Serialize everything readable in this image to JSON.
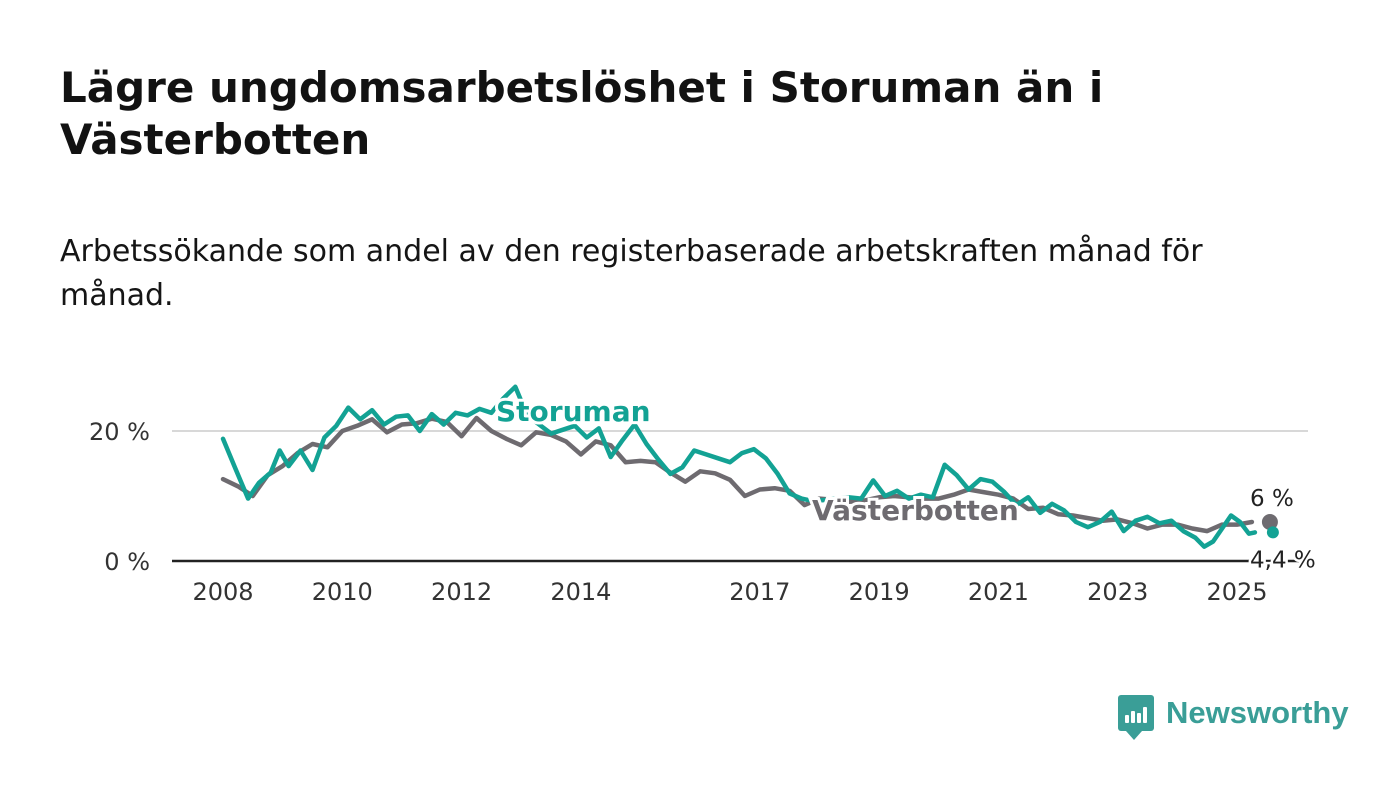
{
  "header": {
    "title": "Lägre ungdomsarbetslöshet i Storuman än i Västerbotten",
    "subtitle": "Arbetssökande som andel av den registerbaserade arbetskraften månad för månad."
  },
  "chart_data": {
    "type": "line",
    "x_ticks": [
      "2008",
      "2010",
      "2012",
      "2014",
      "2017",
      "2019",
      "2021",
      "2023",
      "2025"
    ],
    "y_ticks": [
      "0 %",
      "20 %"
    ],
    "ylim": [
      0,
      30
    ],
    "grid": "horizontal",
    "series": [
      {
        "name": "Västerbotten",
        "color": "#6e6b70",
        "end_label": "6 %",
        "points": [
          [
            2008.0,
            12.6
          ],
          [
            2008.25,
            11.5
          ],
          [
            2008.5,
            10.0
          ],
          [
            2008.75,
            13.2
          ],
          [
            2009.0,
            14.6
          ],
          [
            2009.25,
            16.6
          ],
          [
            2009.5,
            18.0
          ],
          [
            2009.75,
            17.5
          ],
          [
            2010.0,
            20.0
          ],
          [
            2010.25,
            20.8
          ],
          [
            2010.5,
            21.8
          ],
          [
            2010.75,
            19.8
          ],
          [
            2011.0,
            21.0
          ],
          [
            2011.25,
            21.2
          ],
          [
            2011.5,
            21.9
          ],
          [
            2011.75,
            21.4
          ],
          [
            2012.0,
            19.2
          ],
          [
            2012.25,
            22.0
          ],
          [
            2012.5,
            20.0
          ],
          [
            2012.75,
            18.8
          ],
          [
            2013.0,
            17.8
          ],
          [
            2013.25,
            19.8
          ],
          [
            2013.5,
            19.4
          ],
          [
            2013.75,
            18.4
          ],
          [
            2014.0,
            16.4
          ],
          [
            2014.25,
            18.4
          ],
          [
            2014.5,
            17.8
          ],
          [
            2014.75,
            15.2
          ],
          [
            2015.0,
            15.4
          ],
          [
            2015.25,
            15.2
          ],
          [
            2015.5,
            13.6
          ],
          [
            2015.75,
            12.2
          ],
          [
            2016.0,
            13.8
          ],
          [
            2016.25,
            13.5
          ],
          [
            2016.5,
            12.5
          ],
          [
            2016.75,
            10.0
          ],
          [
            2017.0,
            11.0
          ],
          [
            2017.25,
            11.2
          ],
          [
            2017.5,
            10.8
          ],
          [
            2017.75,
            8.6
          ],
          [
            2018.0,
            9.6
          ],
          [
            2018.25,
            9.4
          ],
          [
            2018.5,
            9.1
          ],
          [
            2018.75,
            9.3
          ],
          [
            2019.0,
            9.8
          ],
          [
            2019.25,
            10.0
          ],
          [
            2019.5,
            9.8
          ],
          [
            2019.75,
            9.6
          ],
          [
            2020.0,
            9.6
          ],
          [
            2020.25,
            10.2
          ],
          [
            2020.5,
            11.0
          ],
          [
            2020.75,
            10.6
          ],
          [
            2021.0,
            10.2
          ],
          [
            2021.25,
            9.6
          ],
          [
            2021.5,
            8.0
          ],
          [
            2021.75,
            8.2
          ],
          [
            2022.0,
            7.2
          ],
          [
            2022.25,
            7.0
          ],
          [
            2022.5,
            6.6
          ],
          [
            2022.75,
            6.2
          ],
          [
            2023.0,
            6.4
          ],
          [
            2023.25,
            5.8
          ],
          [
            2023.5,
            5.0
          ],
          [
            2023.75,
            5.6
          ],
          [
            2024.0,
            5.6
          ],
          [
            2024.25,
            5.0
          ],
          [
            2024.5,
            4.6
          ],
          [
            2024.75,
            5.6
          ],
          [
            2025.0,
            5.6
          ],
          [
            2025.25,
            6.0
          ]
        ]
      },
      {
        "name": "Storuman",
        "color": "#13a294",
        "end_label": "4,4 %",
        "points": [
          [
            2008.0,
            18.8
          ],
          [
            2008.2,
            14.4
          ],
          [
            2008.42,
            9.6
          ],
          [
            2008.6,
            12.0
          ],
          [
            2008.8,
            13.6
          ],
          [
            2008.95,
            17.0
          ],
          [
            2009.1,
            14.6
          ],
          [
            2009.3,
            17.0
          ],
          [
            2009.5,
            14.0
          ],
          [
            2009.7,
            19.0
          ],
          [
            2009.9,
            20.8
          ],
          [
            2010.1,
            23.6
          ],
          [
            2010.3,
            21.8
          ],
          [
            2010.5,
            23.2
          ],
          [
            2010.7,
            21.0
          ],
          [
            2010.9,
            22.2
          ],
          [
            2011.1,
            22.4
          ],
          [
            2011.3,
            20.0
          ],
          [
            2011.5,
            22.6
          ],
          [
            2011.7,
            21.0
          ],
          [
            2011.9,
            22.8
          ],
          [
            2012.1,
            22.4
          ],
          [
            2012.3,
            23.4
          ],
          [
            2012.5,
            22.8
          ],
          [
            2012.7,
            25.0
          ],
          [
            2012.9,
            26.8
          ],
          [
            2013.1,
            22.4
          ],
          [
            2013.3,
            21.0
          ],
          [
            2013.5,
            19.6
          ],
          [
            2013.7,
            20.2
          ],
          [
            2013.9,
            20.8
          ],
          [
            2014.1,
            19.0
          ],
          [
            2014.3,
            20.4
          ],
          [
            2014.5,
            16.0
          ],
          [
            2014.7,
            18.6
          ],
          [
            2014.9,
            21.0
          ],
          [
            2015.1,
            18.0
          ],
          [
            2015.3,
            15.6
          ],
          [
            2015.5,
            13.4
          ],
          [
            2015.7,
            14.4
          ],
          [
            2015.9,
            17.0
          ],
          [
            2016.1,
            16.4
          ],
          [
            2016.3,
            15.8
          ],
          [
            2016.5,
            15.2
          ],
          [
            2016.7,
            16.6
          ],
          [
            2016.9,
            17.2
          ],
          [
            2017.1,
            15.8
          ],
          [
            2017.3,
            13.4
          ],
          [
            2017.5,
            10.4
          ],
          [
            2017.7,
            9.6
          ],
          [
            2017.9,
            9.2
          ],
          [
            2018.1,
            9.4
          ],
          [
            2018.3,
            9.6
          ],
          [
            2018.5,
            9.8
          ],
          [
            2018.7,
            9.6
          ],
          [
            2018.9,
            12.4
          ],
          [
            2019.1,
            10.0
          ],
          [
            2019.3,
            10.8
          ],
          [
            2019.5,
            9.6
          ],
          [
            2019.7,
            10.2
          ],
          [
            2019.9,
            9.8
          ],
          [
            2020.1,
            14.8
          ],
          [
            2020.3,
            13.2
          ],
          [
            2020.5,
            11.0
          ],
          [
            2020.7,
            12.6
          ],
          [
            2020.9,
            12.2
          ],
          [
            2021.1,
            10.6
          ],
          [
            2021.3,
            8.6
          ],
          [
            2021.5,
            9.8
          ],
          [
            2021.7,
            7.4
          ],
          [
            2021.9,
            8.8
          ],
          [
            2022.1,
            7.8
          ],
          [
            2022.3,
            6.0
          ],
          [
            2022.5,
            5.2
          ],
          [
            2022.7,
            6.0
          ],
          [
            2022.9,
            7.6
          ],
          [
            2023.1,
            4.6
          ],
          [
            2023.3,
            6.2
          ],
          [
            2023.5,
            6.8
          ],
          [
            2023.7,
            5.8
          ],
          [
            2023.9,
            6.2
          ],
          [
            2024.1,
            4.6
          ],
          [
            2024.3,
            3.6
          ],
          [
            2024.45,
            2.2
          ],
          [
            2024.6,
            3.0
          ],
          [
            2024.75,
            5.0
          ],
          [
            2024.9,
            7.0
          ],
          [
            2025.05,
            6.0
          ],
          [
            2025.2,
            4.2
          ],
          [
            2025.3,
            4.4
          ]
        ]
      }
    ]
  },
  "brand": {
    "name": "Newsworthy"
  }
}
